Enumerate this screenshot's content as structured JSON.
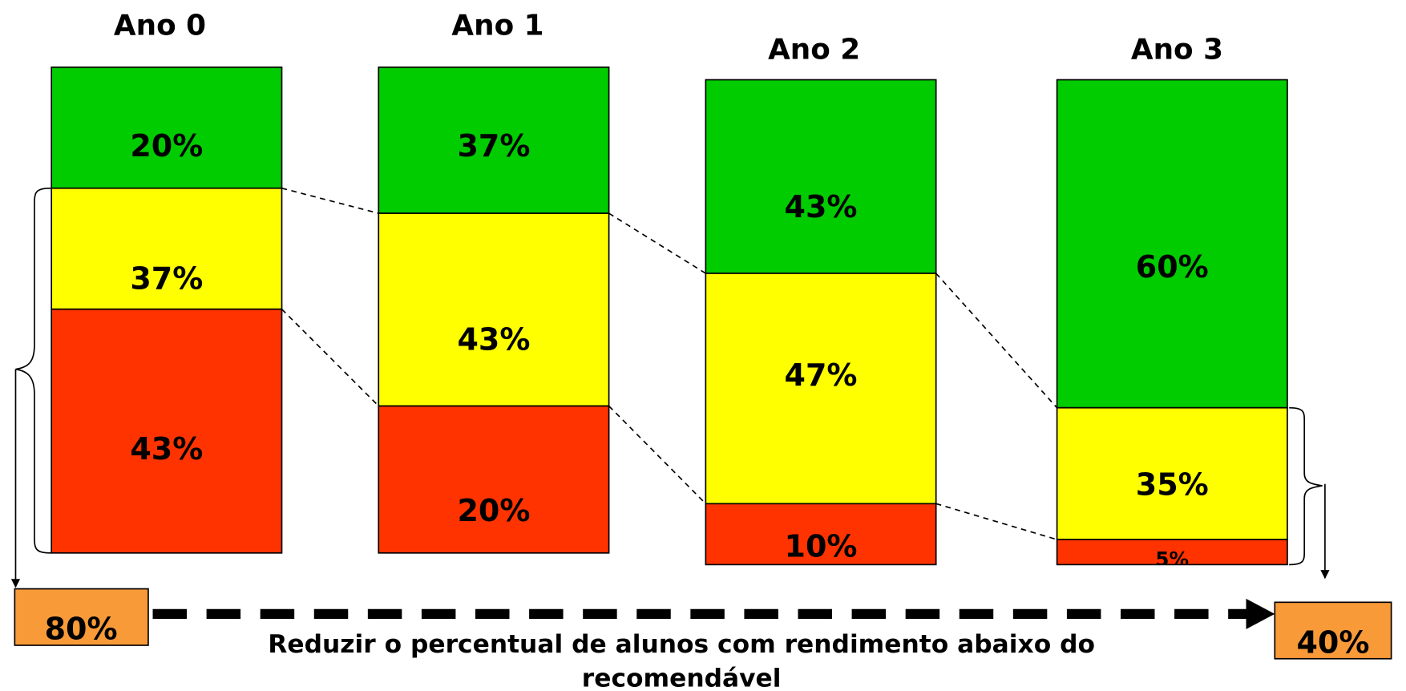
{
  "columns": [
    {
      "title": "Ano 0",
      "segments": [
        {
          "label": "20%"
        },
        {
          "label": "37%"
        },
        {
          "label": "43%"
        }
      ]
    },
    {
      "title": "Ano 1",
      "segments": [
        {
          "label": "37%"
        },
        {
          "label": "43%"
        },
        {
          "label": "20%"
        }
      ]
    },
    {
      "title": "Ano 2",
      "segments": [
        {
          "label": "43%"
        },
        {
          "label": "47%"
        },
        {
          "label": "10%"
        }
      ]
    },
    {
      "title": "Ano 3",
      "segments": [
        {
          "label": "60%"
        },
        {
          "label": "35%"
        },
        {
          "label": "5%"
        }
      ]
    }
  ],
  "start_box": "80%",
  "end_box": "40%",
  "caption": [
    "Reduzir o percentual de alunos com rendimento abaixo do",
    "recomendável"
  ]
}
